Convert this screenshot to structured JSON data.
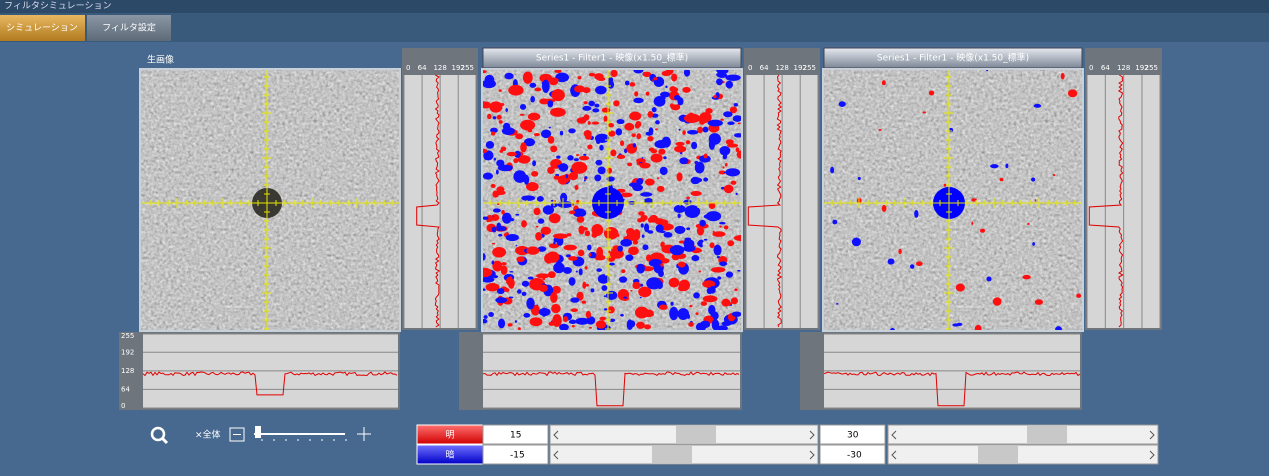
{
  "window": {
    "title": "フィルタシミュレーション"
  },
  "tabs": [
    "シミュレーション",
    "フィルタ設定"
  ],
  "panels": [
    {
      "label": "生画像"
    },
    {
      "label": "Series1 - Filter1 - 映像(x1.50_標準)"
    },
    {
      "label": "Series1 - Filter1 - 映像(x1.50_標準)"
    }
  ],
  "profile_ticks": [
    0,
    64,
    128,
    192,
    255
  ],
  "zoom": {
    "label": "×全体"
  },
  "thresholds": [
    {
      "label": "明",
      "values": [
        15,
        30
      ]
    },
    {
      "label": "暗",
      "values": [
        -15,
        -30
      ]
    }
  ]
}
